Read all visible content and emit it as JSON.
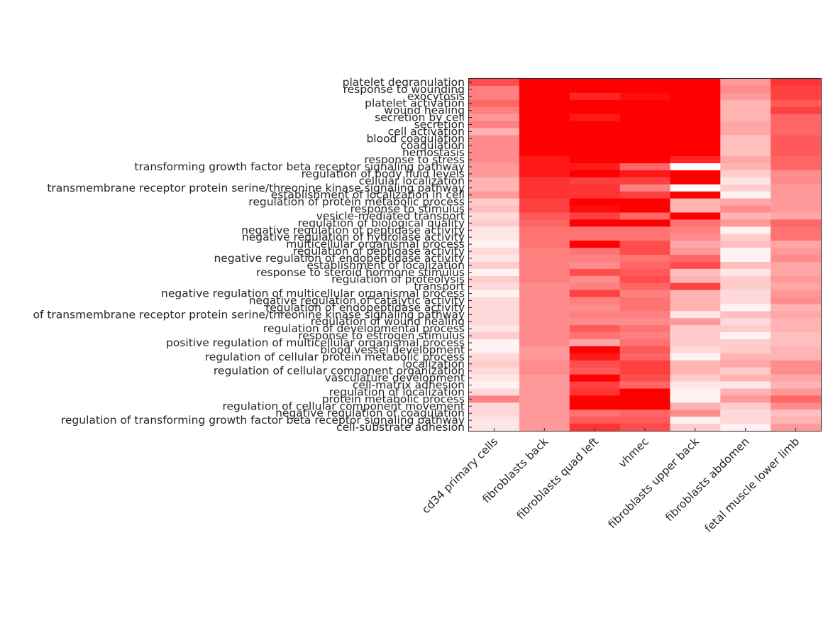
{
  "chart_data": {
    "type": "heatmap",
    "colormap": {
      "low": "#ffffff",
      "high": "#ff0000"
    },
    "value_range": [
      0,
      1
    ],
    "columns": [
      "cd34 primary cells",
      "fibroblasts back",
      "fibroblasts quad left",
      "vhmec",
      "fibroblasts upper back",
      "fibroblasts abdomen",
      "fetal muscle lower limb"
    ],
    "rows": [
      "platelet degranulation",
      "response to wounding",
      "exocytosis",
      "platelet activation",
      "wound healing",
      "secretion by cell",
      "secretion",
      "cell activation",
      "blood coagulation",
      "coagulation",
      "hemostasis",
      "response to stress",
      "transforming growth factor beta receptor signaling pathway",
      "regulation of body fluid levels",
      "cellular localization",
      "transmembrane receptor protein serine/threonine kinase signaling pathway",
      "establishment of localization in cell",
      "regulation of protein metabolic process",
      "response to stimulus",
      "vesicle-mediated transport",
      "regulation of biological quality",
      "negative regulation of peptidase activity",
      "negative regulation of hydrolase activity",
      "multicellular organismal process",
      "regulation of peptidase activity",
      "negative regulation of endopeptidase activity",
      "establishment of localization",
      "response to steroid hormone stimulus",
      "regulation of proteolysis",
      "transport",
      "negative regulation of multicellular organismal process",
      "negative regulation of catalytic activity",
      "regulation of endopeptidase activity",
      "of transmembrane receptor protein serine/threonine kinase signaling pathway",
      "regulation of wound healing",
      "regulation of developmental process",
      "response to estrogen stimulus",
      "positive regulation of multicellular organismal process",
      "blood vessel development",
      "regulation of cellular protein metabolic process",
      "localization",
      "regulation of cellular component organization",
      "vasculature development",
      "cell-matrix adhesion",
      "regulation of localization",
      "protein metabolic process",
      "regulation of cellular component movement",
      "negative regulation of coagulation",
      "regulation of transforming growth factor beta receptor signaling pathway",
      "cell-substrate adhesion"
    ],
    "values": [
      [
        0.7,
        1.0,
        1.0,
        1.0,
        1.0,
        0.4,
        0.8
      ],
      [
        0.5,
        1.0,
        1.0,
        1.0,
        1.0,
        0.45,
        0.75
      ],
      [
        0.5,
        1.0,
        0.85,
        0.95,
        1.0,
        0.4,
        0.75
      ],
      [
        0.6,
        1.0,
        1.0,
        1.0,
        1.0,
        0.3,
        0.65
      ],
      [
        0.5,
        1.0,
        1.0,
        1.0,
        1.0,
        0.3,
        0.75
      ],
      [
        0.4,
        1.0,
        0.9,
        1.0,
        1.0,
        0.3,
        0.6
      ],
      [
        0.5,
        1.0,
        1.0,
        1.0,
        1.0,
        0.35,
        0.6
      ],
      [
        0.3,
        1.0,
        1.0,
        1.0,
        1.0,
        0.35,
        0.6
      ],
      [
        0.45,
        1.0,
        1.0,
        1.0,
        1.0,
        0.25,
        0.65
      ],
      [
        0.45,
        1.0,
        1.0,
        1.0,
        1.0,
        0.25,
        0.65
      ],
      [
        0.45,
        1.0,
        1.0,
        1.0,
        1.0,
        0.25,
        0.65
      ],
      [
        0.45,
        0.9,
        1.0,
        1.0,
        0.85,
        0.35,
        0.6
      ],
      [
        0.4,
        0.9,
        0.9,
        0.6,
        0.0,
        0.3,
        0.6
      ],
      [
        0.4,
        0.9,
        1.0,
        0.9,
        1.0,
        0.2,
        0.45
      ],
      [
        0.3,
        0.8,
        0.75,
        0.75,
        1.0,
        0.1,
        0.45
      ],
      [
        0.3,
        0.8,
        0.8,
        0.5,
        0.0,
        0.2,
        0.4
      ],
      [
        0.4,
        0.8,
        0.8,
        0.75,
        1.0,
        0.05,
        0.4
      ],
      [
        0.2,
        0.75,
        1.0,
        1.0,
        0.3,
        0.35,
        0.4
      ],
      [
        0.25,
        0.75,
        0.95,
        1.0,
        0.3,
        0.45,
        0.4
      ],
      [
        0.15,
        0.65,
        0.75,
        0.6,
        1.0,
        0.3,
        0.35
      ],
      [
        0.2,
        0.6,
        1.0,
        1.0,
        0.55,
        0.4,
        0.6
      ],
      [
        0.1,
        0.55,
        0.55,
        0.55,
        0.5,
        0.05,
        0.55
      ],
      [
        0.1,
        0.55,
        0.55,
        0.55,
        0.45,
        0.2,
        0.55
      ],
      [
        0.05,
        0.55,
        1.0,
        0.7,
        0.35,
        0.25,
        0.35
      ],
      [
        0.15,
        0.5,
        0.55,
        0.7,
        0.4,
        0.05,
        0.4
      ],
      [
        0.1,
        0.5,
        0.5,
        0.55,
        0.6,
        0.05,
        0.45
      ],
      [
        0.2,
        0.5,
        0.45,
        0.6,
        0.7,
        0.25,
        0.35
      ],
      [
        0.05,
        0.5,
        0.7,
        0.65,
        0.25,
        0.1,
        0.35
      ],
      [
        0.2,
        0.5,
        0.45,
        0.7,
        0.3,
        0.2,
        0.4
      ],
      [
        0.15,
        0.45,
        0.5,
        0.6,
        0.75,
        0.2,
        0.35
      ],
      [
        0.05,
        0.45,
        0.75,
        0.5,
        0.3,
        0.15,
        0.4
      ],
      [
        0.15,
        0.45,
        0.5,
        0.55,
        0.3,
        0.15,
        0.45
      ],
      [
        0.15,
        0.45,
        0.45,
        0.55,
        0.3,
        0.05,
        0.3
      ],
      [
        0.15,
        0.45,
        0.5,
        0.5,
        0.1,
        0.25,
        0.35
      ],
      [
        0.15,
        0.45,
        0.45,
        0.45,
        0.4,
        0.15,
        0.3
      ],
      [
        0.1,
        0.45,
        0.65,
        0.55,
        0.2,
        0.2,
        0.3
      ],
      [
        0.2,
        0.45,
        0.55,
        0.5,
        0.2,
        0.05,
        0.25
      ],
      [
        0.05,
        0.45,
        0.35,
        0.55,
        0.2,
        0.2,
        0.25
      ],
      [
        0.05,
        0.4,
        1.0,
        0.65,
        0.15,
        0.2,
        0.3
      ],
      [
        0.15,
        0.4,
        0.9,
        0.6,
        0.05,
        0.3,
        0.3
      ],
      [
        0.2,
        0.45,
        0.7,
        0.75,
        0.3,
        0.35,
        0.45
      ],
      [
        0.15,
        0.45,
        0.65,
        0.75,
        0.3,
        0.2,
        0.45
      ],
      [
        0.1,
        0.4,
        1.0,
        0.7,
        0.2,
        0.3,
        0.35
      ],
      [
        0.05,
        0.4,
        0.75,
        0.6,
        0.1,
        0.1,
        0.3
      ],
      [
        0.15,
        0.4,
        0.8,
        1.0,
        0.05,
        0.3,
        0.4
      ],
      [
        0.5,
        0.4,
        1.0,
        1.0,
        0.05,
        0.4,
        0.6
      ],
      [
        0.15,
        0.4,
        1.0,
        1.0,
        0.3,
        0.2,
        0.45
      ],
      [
        0.15,
        0.4,
        0.55,
        0.6,
        0.45,
        0.15,
        0.25
      ],
      [
        0.1,
        0.4,
        0.65,
        0.65,
        0.05,
        0.15,
        0.3
      ],
      [
        0.1,
        0.4,
        0.8,
        0.7,
        0.2,
        0.05,
        0.4
      ]
    ]
  }
}
